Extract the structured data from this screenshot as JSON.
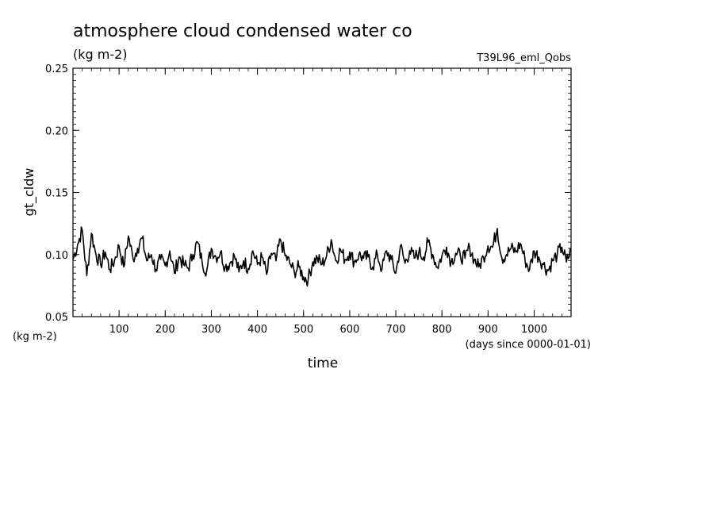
{
  "chart_data": {
    "type": "line",
    "title": "atmosphere cloud condensed water co",
    "subtitle": "(kg m-2)",
    "run_label": "T39L96_eml_Qobs",
    "xlabel": "time",
    "x_units": "(days since 0000-01-01)",
    "ylabel": "gt_cldw",
    "y_units": "(kg m-2)",
    "xlim": [
      0,
      1080
    ],
    "ylim": [
      0.05,
      0.25
    ],
    "x_ticks": [
      100,
      200,
      300,
      400,
      500,
      600,
      700,
      800,
      900,
      1000
    ],
    "x_tick_labels": [
      "100",
      "200",
      "300",
      "400",
      "500",
      "600",
      "700",
      "800",
      "900",
      "1000"
    ],
    "y_ticks": [
      0.05,
      0.1,
      0.15,
      0.2,
      0.25
    ],
    "y_tick_labels": [
      "0.05",
      "0.10",
      "0.15",
      "0.20",
      "0.25"
    ],
    "grid": false,
    "color": "#000000",
    "series": [
      {
        "x": [
          0,
          10,
          20,
          30,
          40,
          50,
          60,
          70,
          80,
          90,
          100,
          110,
          120,
          130,
          140,
          150,
          160,
          170,
          180,
          190,
          200,
          210,
          220,
          230,
          240,
          250,
          260,
          270,
          280,
          290,
          300,
          310,
          320,
          330,
          340,
          350,
          360,
          370,
          380,
          390,
          400,
          410,
          420,
          430,
          440,
          450,
          460,
          470,
          480,
          490,
          500,
          510,
          520,
          530,
          540,
          550,
          560,
          570,
          580,
          590,
          600,
          610,
          620,
          630,
          640,
          650,
          660,
          670,
          680,
          690,
          700,
          710,
          720,
          730,
          740,
          750,
          760,
          770,
          780,
          790,
          800,
          810,
          820,
          830,
          840,
          850,
          860,
          870,
          880,
          890,
          900,
          910,
          920,
          930,
          940,
          950,
          960,
          970,
          980,
          990,
          1000,
          1010,
          1020,
          1030,
          1040,
          1050,
          1060,
          1070,
          1080
        ],
        "values": [
          0.096,
          0.108,
          0.12,
          0.083,
          0.117,
          0.1,
          0.092,
          0.102,
          0.088,
          0.095,
          0.107,
          0.09,
          0.115,
          0.097,
          0.105,
          0.113,
          0.095,
          0.1,
          0.088,
          0.096,
          0.091,
          0.103,
          0.085,
          0.098,
          0.092,
          0.089,
          0.1,
          0.11,
          0.094,
          0.087,
          0.105,
          0.098,
          0.102,
          0.09,
          0.093,
          0.099,
          0.086,
          0.095,
          0.089,
          0.103,
          0.092,
          0.098,
          0.084,
          0.101,
          0.095,
          0.112,
          0.099,
          0.093,
          0.086,
          0.09,
          0.082,
          0.08,
          0.094,
          0.097,
          0.092,
          0.099,
          0.112,
          0.095,
          0.104,
          0.096,
          0.102,
          0.094,
          0.1,
          0.097,
          0.098,
          0.09,
          0.1,
          0.088,
          0.103,
          0.096,
          0.085,
          0.107,
          0.093,
          0.103,
          0.097,
          0.102,
          0.098,
          0.11,
          0.1,
          0.09,
          0.099,
          0.106,
          0.094,
          0.101,
          0.099,
          0.097,
          0.106,
          0.096,
          0.09,
          0.098,
          0.107,
          0.106,
          0.121,
          0.097,
          0.1,
          0.105,
          0.102,
          0.109,
          0.096,
          0.088,
          0.103,
          0.098,
          0.092,
          0.087,
          0.095,
          0.1,
          0.106,
          0.094,
          0.103
        ]
      }
    ]
  }
}
